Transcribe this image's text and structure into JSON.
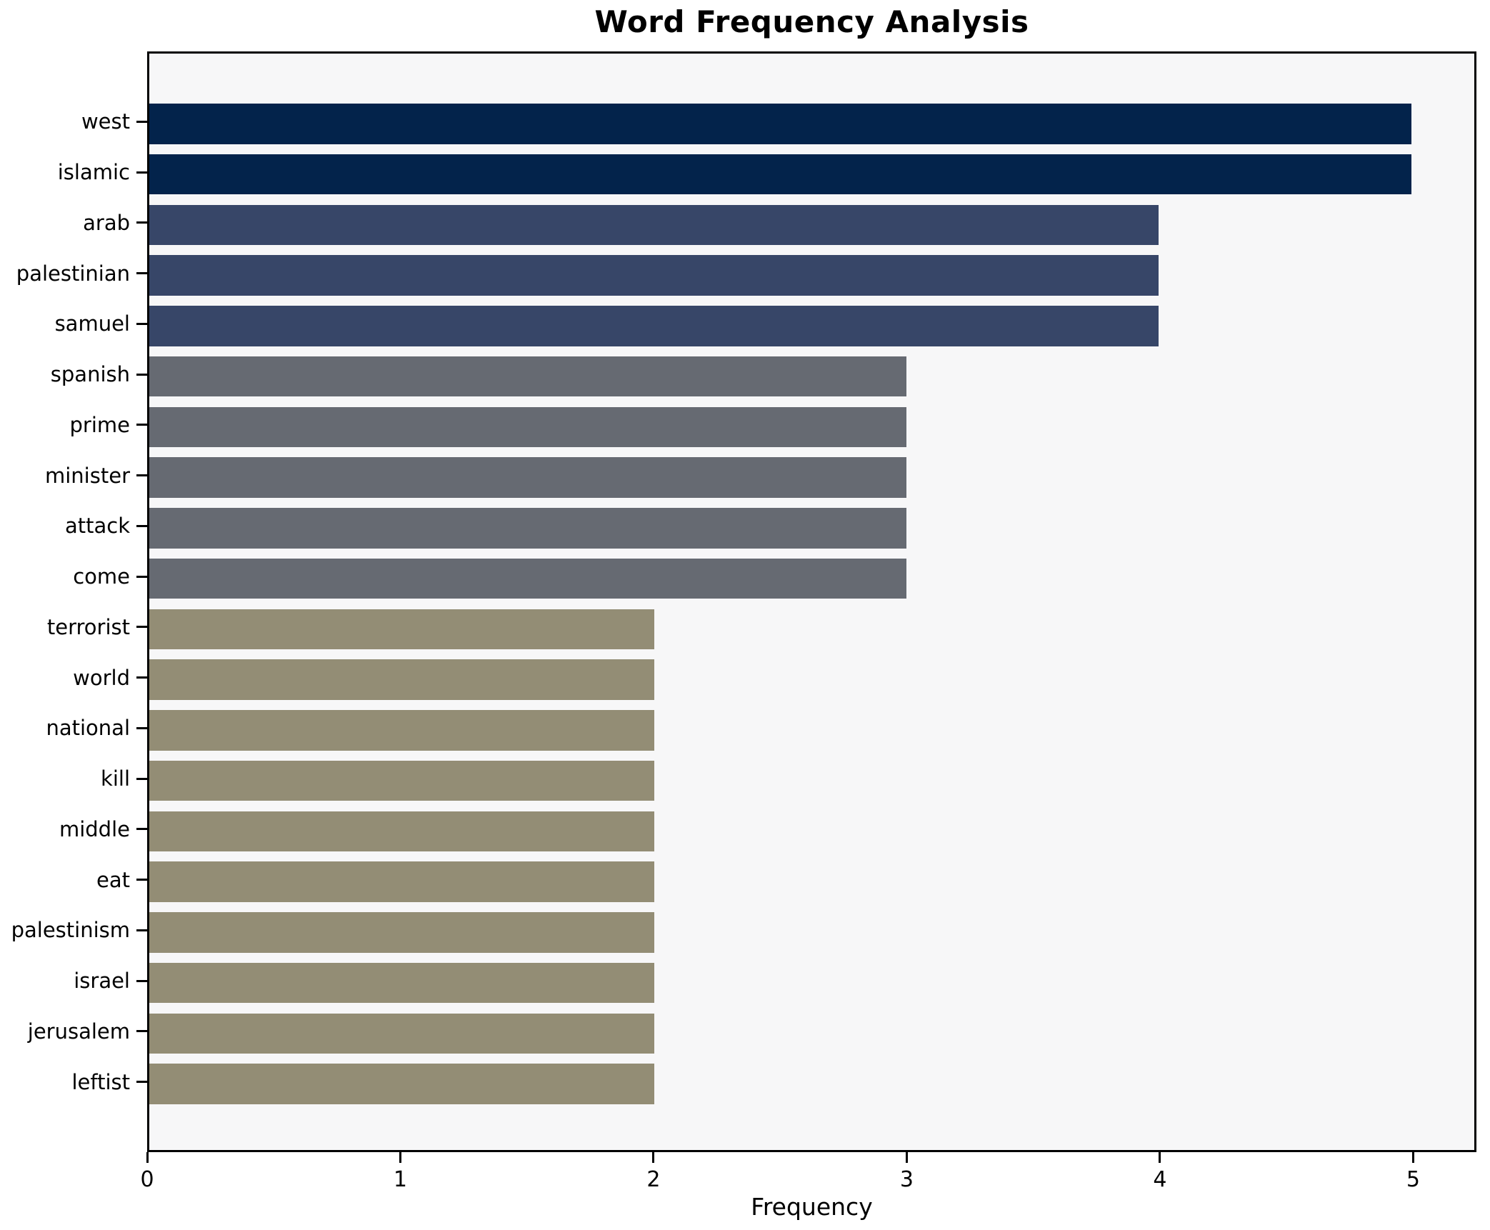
{
  "chart_data": {
    "type": "bar",
    "orientation": "horizontal",
    "title": "Word Frequency Analysis",
    "xlabel": "Frequency",
    "ylabel": "",
    "categories": [
      "west",
      "islamic",
      "arab",
      "palestinian",
      "samuel",
      "spanish",
      "prime",
      "minister",
      "attack",
      "come",
      "terrorist",
      "world",
      "national",
      "kill",
      "middle",
      "eat",
      "palestinism",
      "israel",
      "jerusalem",
      "leftist"
    ],
    "values": [
      5,
      5,
      4,
      4,
      4,
      3,
      3,
      3,
      3,
      3,
      2,
      2,
      2,
      2,
      2,
      2,
      2,
      2,
      2,
      2
    ],
    "bar_colors": [
      "#03234B",
      "#03234B",
      "#374668",
      "#374668",
      "#374668",
      "#666A72",
      "#666A72",
      "#666A72",
      "#666A72",
      "#666A72",
      "#938D75",
      "#938D75",
      "#938D75",
      "#938D75",
      "#938D75",
      "#938D75",
      "#938D75",
      "#938D75",
      "#938D75",
      "#938D75"
    ],
    "xticks": [
      0,
      1,
      2,
      3,
      4,
      5
    ],
    "xlim": [
      0,
      5.25
    ],
    "grid": false,
    "legend": null,
    "plot_background": "#F7F7F8",
    "figure_background": "#FFFFFF",
    "text_color": "#000000"
  }
}
